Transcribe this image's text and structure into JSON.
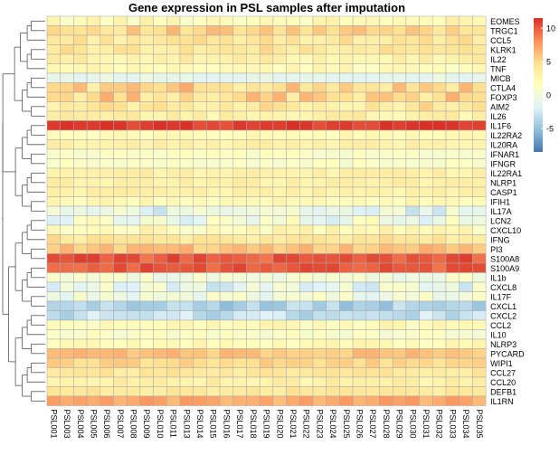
{
  "chart_data": {
    "type": "heatmap",
    "title": "Gene expression in PSL samples after imputation",
    "columns": [
      "PSL001",
      "PSL003",
      "PSL004",
      "PSL005",
      "PSL006",
      "PSL007",
      "PSL008",
      "PSL009",
      "PSL010",
      "PSL011",
      "PSL013",
      "PSL014",
      "PSL015",
      "PSL016",
      "PSL017",
      "PSL018",
      "PSL019",
      "PSL020",
      "PSL021",
      "PSL022",
      "PSL023",
      "PSL024",
      "PSL025",
      "PSL026",
      "PSL027",
      "PSL028",
      "PSL029",
      "PSL030",
      "PSL031",
      "PSL032",
      "PSL033",
      "PSL034",
      "PSL035"
    ],
    "rows": [
      "EOMES",
      "TRGC1",
      "CCL5",
      "KLRK1",
      "IL22",
      "TNF",
      "MICB",
      "CTLA4",
      "FOXP3",
      "AIM2",
      "IL26",
      "IL1F6",
      "IL22RA2",
      "IL20RA",
      "IFNAR1",
      "IFNGR",
      "IL22RA1",
      "NLRP1",
      "CASP1",
      "IFIH1",
      "IL17A",
      "LCN2",
      "CXCL10",
      "IFNG",
      "PI3",
      "S100A8",
      "S100A9",
      "IL1b",
      "CXCL8",
      "IL17F",
      "CXCL1",
      "CXCL2",
      "CCL2",
      "IL10",
      "NLRP3",
      "PYCARD",
      "WIPI1",
      "CCL27",
      "CCL20",
      "DEFB1",
      "IL1RN"
    ],
    "row_base": [
      2,
      5,
      4,
      4,
      3,
      2,
      -1,
      5,
      5,
      4,
      3,
      11,
      2,
      3,
      1,
      1,
      3,
      3,
      3,
      2,
      -1,
      0,
      2,
      4,
      6,
      10,
      10,
      0,
      -1,
      0,
      -4,
      -3,
      2,
      1,
      2,
      6,
      5,
      4,
      3,
      4,
      7
    ],
    "row_variation": [
      1.2,
      1.5,
      1.2,
      1.2,
      1.0,
      0.8,
      0.6,
      2.0,
      2.0,
      1.5,
      1.0,
      0.7,
      0.6,
      0.6,
      0.6,
      0.6,
      0.6,
      0.6,
      0.6,
      0.8,
      2.0,
      2.2,
      1.2,
      1.4,
      1.0,
      1.0,
      1.0,
      1.2,
      2.0,
      1.5,
      1.3,
      1.3,
      1.0,
      0.8,
      0.8,
      0.8,
      0.8,
      0.8,
      0.8,
      0.8,
      0.8
    ],
    "legend": {
      "ticks": [
        10,
        5,
        0,
        -5
      ],
      "colors": [
        "#4575b4",
        "#91bfdb",
        "#e0f3f8",
        "#ffffbf",
        "#fee090",
        "#fc8d59",
        "#d73027"
      ],
      "range": [
        -8.5,
        11.5
      ]
    },
    "xlabel": "",
    "ylabel": "",
    "grid": "cell borders"
  }
}
